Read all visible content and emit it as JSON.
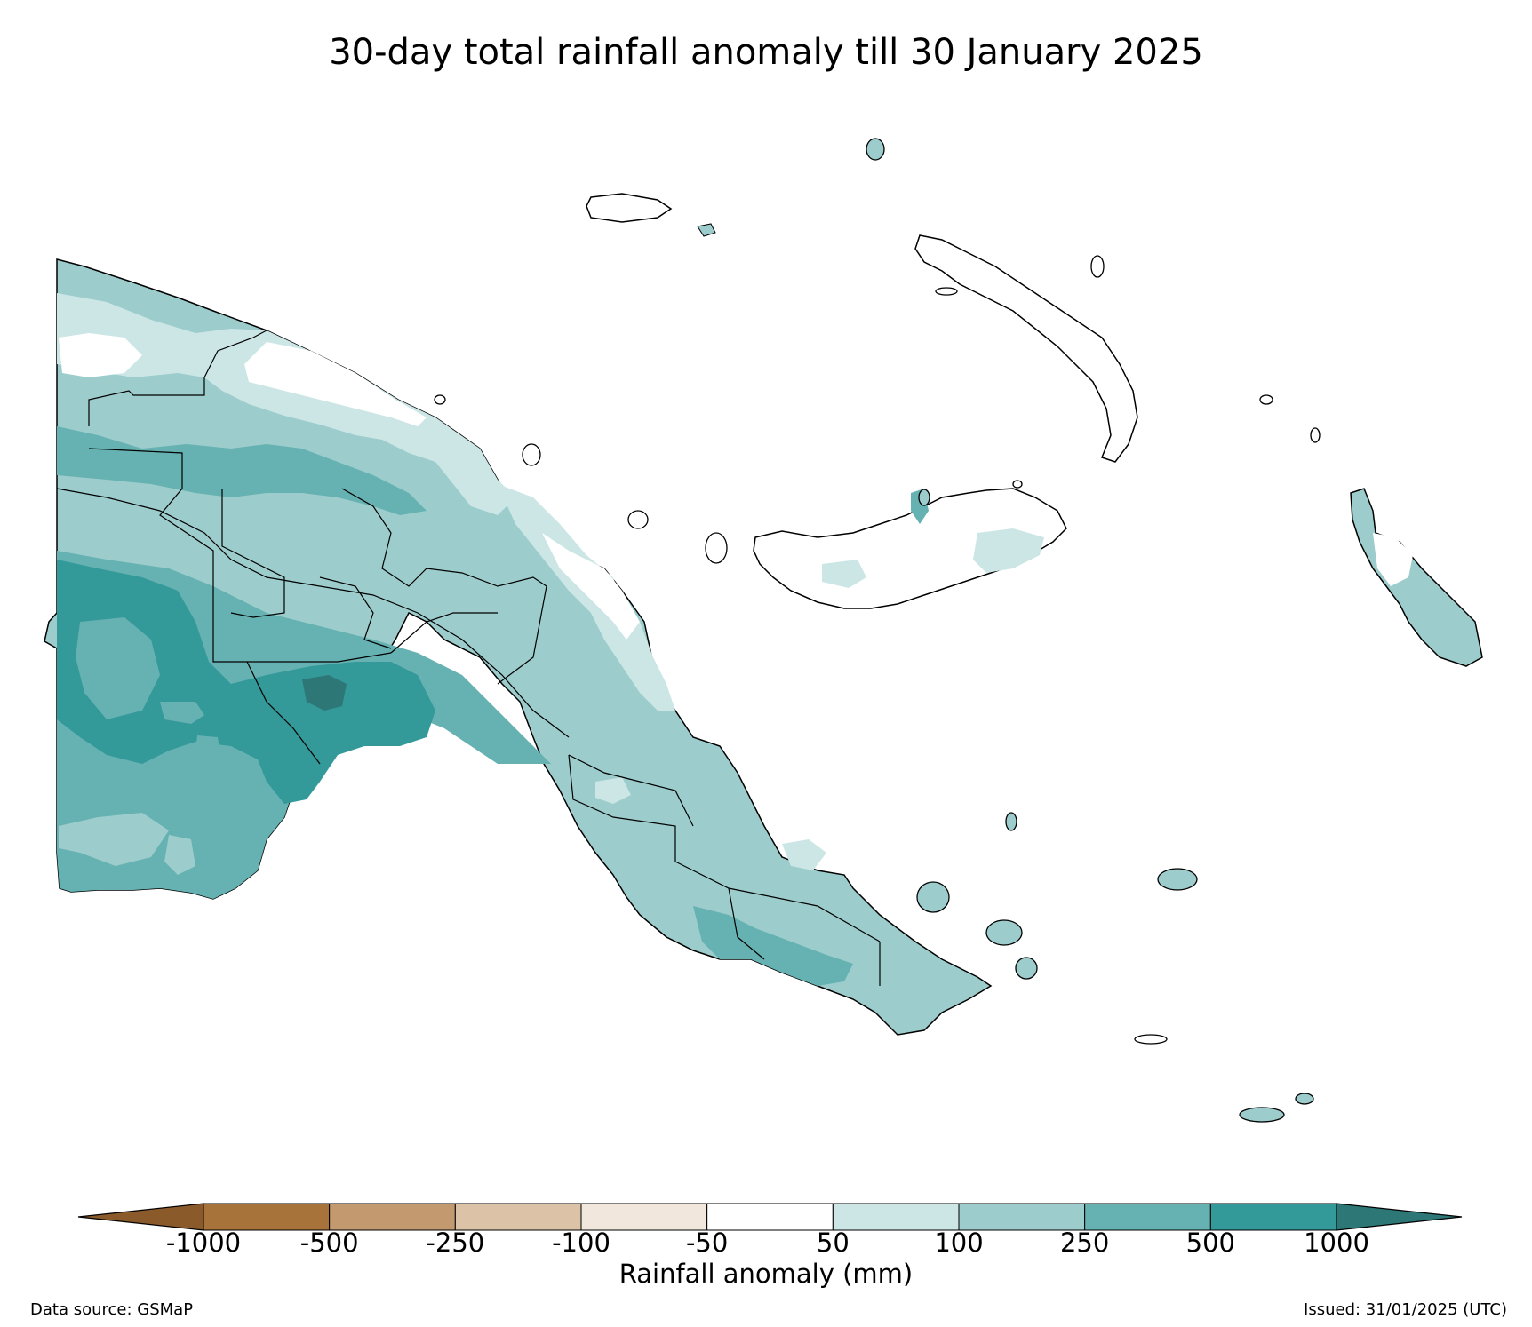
{
  "title": "30-day total rainfall anomaly till 30 January 2025",
  "colorbar": {
    "title": "Rainfall anomaly (mm)",
    "ticks": [
      "-1000",
      "-500",
      "-250",
      "-100",
      "-50",
      "50",
      "100",
      "250",
      "500",
      "1000"
    ],
    "under_color": "#8b5a2b",
    "over_color": "#2e7777",
    "colors": [
      "#a8733a",
      "#c39a6f",
      "#dcc3a8",
      "#f1e7dd",
      "#ffffff",
      "#cce6e6",
      "#9ccccc",
      "#66b1b1",
      "#339999"
    ]
  },
  "palette": {
    "land_outline": "#000000",
    "a50_100": "#cce6e6",
    "a100_250": "#9ccccc",
    "a250_500": "#66b1b1",
    "a500_1000": "#339999",
    "a1000_plus": "#2e7777"
  },
  "footer": {
    "source": "Data source: GSMaP",
    "issued": "Issued: 31/01/2025 (UTC)"
  }
}
